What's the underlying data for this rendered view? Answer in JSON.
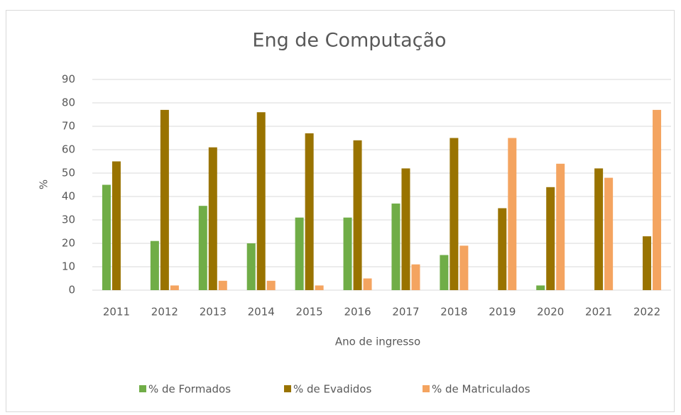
{
  "chart_data": {
    "type": "bar",
    "title": "Eng de Computação",
    "xlabel": "Ano de ingresso",
    "ylabel": "%",
    "categories": [
      "2011",
      "2012",
      "2013",
      "2014",
      "2015",
      "2016",
      "2017",
      "2018",
      "2019",
      "2020",
      "2021",
      "2022"
    ],
    "series": [
      {
        "name": "% de Formados",
        "color": "#70ad47",
        "values": [
          45,
          21,
          36,
          20,
          31,
          31,
          37,
          15,
          0,
          2,
          0,
          0
        ]
      },
      {
        "name": "% de Evadidos",
        "color": "#997300",
        "values": [
          55,
          77,
          61,
          76,
          67,
          64,
          52,
          65,
          35,
          44,
          52,
          23
        ]
      },
      {
        "name": "% de Matriculados",
        "color": "#f4a460",
        "values": [
          0,
          2,
          4,
          4,
          2,
          5,
          11,
          19,
          65,
          54,
          48,
          77
        ]
      }
    ],
    "ylim": [
      0,
      90
    ],
    "yticks": [
      0,
      10,
      20,
      30,
      40,
      50,
      60,
      70,
      80,
      90
    ],
    "grid": true,
    "legend": "bottom"
  }
}
